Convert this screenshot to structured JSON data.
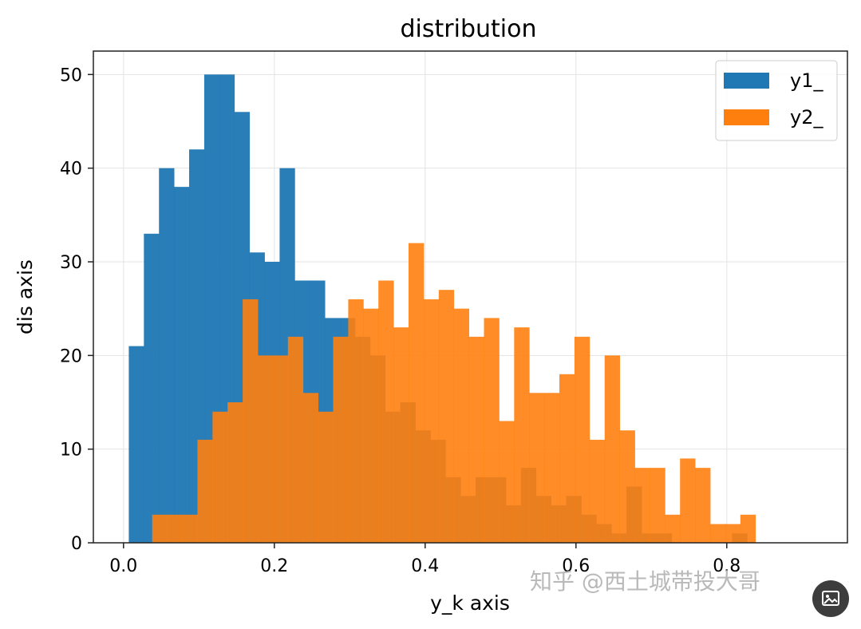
{
  "chart_data": {
    "type": "bar",
    "title": "distribution",
    "xlabel": "y_k axis",
    "ylabel": "dis axis",
    "xlim": [
      -0.04,
      0.96
    ],
    "ylim": [
      0,
      52.5
    ],
    "xticks": [
      "0.0",
      "0.2",
      "0.4",
      "0.6",
      "0.8"
    ],
    "yticks": [
      "0",
      "10",
      "20",
      "30",
      "40",
      "50"
    ],
    "grid": true,
    "legend_position": "top-right",
    "bin_width": 0.02,
    "series": [
      {
        "name": "y1_",
        "color": "#1f77b4",
        "bin_start": 0.007,
        "values": [
          21,
          33,
          40,
          38,
          42,
          50,
          50,
          46,
          31,
          30,
          40,
          28,
          28,
          24,
          24,
          22,
          20,
          14,
          15,
          12,
          11,
          7,
          5,
          7,
          7,
          4,
          8,
          5,
          4,
          5,
          3,
          2,
          1,
          6,
          1,
          1,
          0,
          0,
          0,
          0,
          1,
          0,
          0,
          0,
          0,
          0
        ]
      },
      {
        "name": "y2_",
        "color": "#ff7f0e",
        "bin_start": 0.038,
        "values": [
          3,
          3,
          3,
          11,
          14,
          15,
          26,
          20,
          20,
          22,
          16,
          14,
          22,
          26,
          25,
          28,
          23,
          32,
          26,
          27,
          25,
          22,
          24,
          13,
          23,
          16,
          16,
          18,
          22,
          11,
          20,
          12,
          8,
          8,
          3,
          9,
          8,
          2,
          2,
          3
        ]
      }
    ]
  },
  "watermark": {
    "text": "知乎 @西土城带投大哥"
  },
  "badge": {
    "icon": "image-icon"
  }
}
